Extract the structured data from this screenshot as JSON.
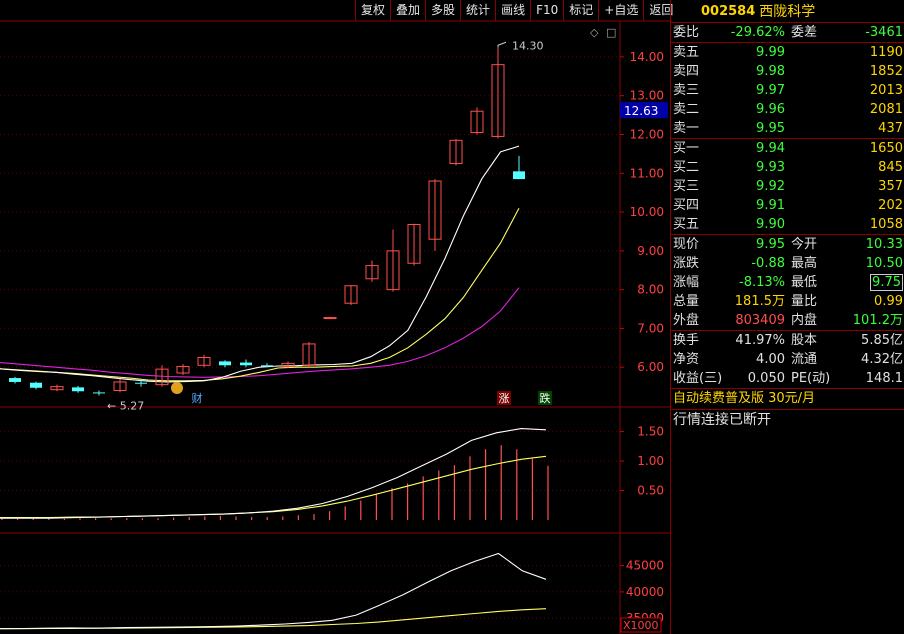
{
  "toolbar": {
    "buttons": [
      "复权",
      "叠加",
      "多股",
      "统计",
      "画线",
      "F10",
      "标记",
      "+自选",
      "返回"
    ]
  },
  "stock": {
    "code": "002584",
    "name": "西陇科学"
  },
  "quote": {
    "weibi_label": "委比",
    "weibi": "-29.62%",
    "weicha_label": "委差",
    "weicha": "-3461",
    "asks": [
      {
        "label": "卖五",
        "price": "9.99",
        "vol": "1190"
      },
      {
        "label": "卖四",
        "price": "9.98",
        "vol": "1852"
      },
      {
        "label": "卖三",
        "price": "9.97",
        "vol": "2013"
      },
      {
        "label": "卖二",
        "price": "9.96",
        "vol": "2081"
      },
      {
        "label": "卖一",
        "price": "9.95",
        "vol": "437"
      }
    ],
    "bids": [
      {
        "label": "买一",
        "price": "9.94",
        "vol": "1650"
      },
      {
        "label": "买二",
        "price": "9.93",
        "vol": "845"
      },
      {
        "label": "买三",
        "price": "9.92",
        "vol": "357"
      },
      {
        "label": "买四",
        "price": "9.91",
        "vol": "202"
      },
      {
        "label": "买五",
        "price": "9.90",
        "vol": "1058"
      }
    ],
    "stats": [
      {
        "l1": "现价",
        "v1": "9.95",
        "c1": "g",
        "l2": "今开",
        "v2": "10.33",
        "c2": "g"
      },
      {
        "l1": "涨跌",
        "v1": "-0.88",
        "c1": "g",
        "l2": "最高",
        "v2": "10.50",
        "c2": "g"
      },
      {
        "l1": "涨幅",
        "v1": "-8.13%",
        "c1": "g",
        "l2": "最低",
        "v2": "9.75",
        "c2": "g",
        "boxed": true
      },
      {
        "l1": "总量",
        "v1": "181.5万",
        "c1": "y",
        "l2": "量比",
        "v2": "0.99",
        "c2": "y"
      },
      {
        "l1": "外盘",
        "v1": "803409",
        "c1": "r",
        "l2": "内盘",
        "v2": "101.2万",
        "c2": "g"
      }
    ],
    "fund": [
      {
        "l1": "换手",
        "v1": "41.97%",
        "l2": "股本",
        "v2": "5.85亿"
      },
      {
        "l1": "净资",
        "v1": "4.00",
        "l2": "流通",
        "v2": "4.32亿"
      },
      {
        "l1": "收益(三)",
        "v1": "0.050",
        "l2": "PE(动)",
        "v2": "148.1"
      }
    ],
    "ad_text": "自动续费普及版 30元/月",
    "status_text": "行情连接已断开"
  },
  "chart_data": [
    {
      "type": "candlestick",
      "yticks": [
        "14.00",
        "13.00",
        "12.00",
        "11.00",
        "10.00",
        "9.00",
        "8.00",
        "7.00",
        "6.00"
      ],
      "ylim": [
        5.0,
        14.9
      ],
      "current_price_label": "12.63",
      "current_price": 12.63,
      "high_label": "14.30",
      "low_label": "5.27",
      "markers": [
        "财",
        "涨",
        "跌"
      ],
      "candles": [
        [
          5.72,
          5.62,
          5.75,
          5.58
        ],
        [
          5.6,
          5.47,
          5.63,
          5.43
        ],
        [
          5.42,
          5.5,
          5.55,
          5.38
        ],
        [
          5.48,
          5.38,
          5.52,
          5.34
        ],
        [
          5.35,
          5.33,
          5.4,
          5.27
        ],
        [
          5.4,
          5.62,
          5.7,
          5.35
        ],
        [
          5.6,
          5.59,
          5.7,
          5.5
        ],
        [
          5.55,
          5.95,
          6.05,
          5.5
        ],
        [
          5.85,
          6.02,
          6.08,
          5.8
        ],
        [
          6.05,
          6.25,
          6.32,
          6.0
        ],
        [
          6.15,
          6.05,
          6.18,
          6.0
        ],
        [
          6.12,
          6.05,
          6.2,
          6.0
        ],
        [
          6.05,
          6.02,
          6.1,
          6.0
        ],
        [
          6.02,
          6.1,
          6.15,
          5.98
        ],
        [
          6.05,
          6.6,
          6.65,
          6.0
        ],
        [
          7.28,
          7.28,
          7.3,
          7.26
        ],
        [
          7.65,
          8.1,
          8.12,
          7.6
        ],
        [
          8.28,
          8.62,
          8.75,
          8.2
        ],
        [
          8.0,
          9.0,
          9.55,
          7.95
        ],
        [
          8.68,
          9.68,
          9.7,
          8.62
        ],
        [
          9.3,
          10.8,
          10.85,
          9.0
        ],
        [
          11.25,
          11.85,
          11.88,
          11.2
        ],
        [
          12.05,
          12.6,
          12.7,
          12.0
        ],
        [
          11.95,
          13.8,
          14.3,
          11.9
        ],
        [
          11.05,
          10.85,
          11.45,
          10.85
        ]
      ],
      "ma5": [
        5.96,
        5.92,
        5.89,
        5.87,
        5.82,
        5.78,
        5.73,
        5.68,
        5.64,
        5.62,
        5.63,
        5.65,
        5.74,
        5.9,
        6.0,
        6.03,
        6.04,
        6.06,
        6.07,
        6.1,
        6.27,
        6.55,
        6.95,
        7.82,
        8.8,
        9.9,
        10.86,
        11.55,
        11.7
      ],
      "ma10": [
        5.96,
        5.93,
        5.9,
        5.87,
        5.84,
        5.8,
        5.76,
        5.72,
        5.67,
        5.65,
        5.65,
        5.66,
        5.7,
        5.77,
        5.87,
        5.98,
        6.0,
        6.0,
        6.02,
        6.03,
        6.1,
        6.25,
        6.5,
        6.85,
        7.25,
        7.8,
        8.5,
        9.2,
        10.1
      ],
      "ma20": [
        6.12,
        6.08,
        6.04,
        6.0,
        5.96,
        5.92,
        5.87,
        5.83,
        5.79,
        5.76,
        5.75,
        5.74,
        5.75,
        5.76,
        5.78,
        5.82,
        5.86,
        5.9,
        5.93,
        5.96,
        6.0,
        6.05,
        6.15,
        6.3,
        6.5,
        6.75,
        7.05,
        7.45,
        8.05
      ]
    },
    {
      "type": "bar",
      "yticks": [
        "1.50",
        "1.00",
        "0.50"
      ],
      "ylim": [
        0,
        1.9
      ],
      "values": [
        0.02,
        0.02,
        0.02,
        0.02,
        0.02,
        0.03,
        0.03,
        0.03,
        0.03,
        0.03,
        0.03,
        0.04,
        0.05,
        0.06,
        0.07,
        0.06,
        0.05,
        0.05,
        0.06,
        0.08,
        0.1,
        0.15,
        0.23,
        0.33,
        0.45,
        0.54,
        0.62,
        0.74,
        0.84,
        0.93,
        1.08,
        1.2,
        1.27,
        1.2,
        1.04,
        0.92
      ],
      "line1": [
        0.03,
        0.03,
        0.03,
        0.04,
        0.05,
        0.06,
        0.07,
        0.08,
        0.09,
        0.1,
        0.12,
        0.15,
        0.2,
        0.28,
        0.4,
        0.55,
        0.72,
        0.92,
        1.12,
        1.35,
        1.48,
        1.55,
        1.53
      ],
      "line2": [
        0.04,
        0.04,
        0.04,
        0.05,
        0.05,
        0.06,
        0.07,
        0.08,
        0.09,
        0.1,
        0.12,
        0.14,
        0.18,
        0.24,
        0.32,
        0.42,
        0.53,
        0.64,
        0.75,
        0.86,
        0.95,
        1.03,
        1.08
      ]
    },
    {
      "type": "line",
      "yticks": [
        "45000",
        "40000",
        "35000"
      ],
      "unit": "X1000",
      "ylim": [
        32000,
        51000
      ],
      "line1": [
        33000,
        33050,
        33100,
        33150,
        33100,
        33200,
        33250,
        33300,
        33350,
        33400,
        33500,
        33700,
        33900,
        34200,
        34600,
        35600,
        37500,
        39500,
        41800,
        44000,
        45800,
        47300,
        44000,
        42400
      ],
      "line2": [
        33000,
        33000,
        33050,
        33050,
        33100,
        33100,
        33150,
        33200,
        33250,
        33300,
        33350,
        33400,
        33500,
        33600,
        33800,
        34000,
        34300,
        34700,
        35100,
        35500,
        35900,
        36300,
        36600,
        36800
      ]
    }
  ]
}
